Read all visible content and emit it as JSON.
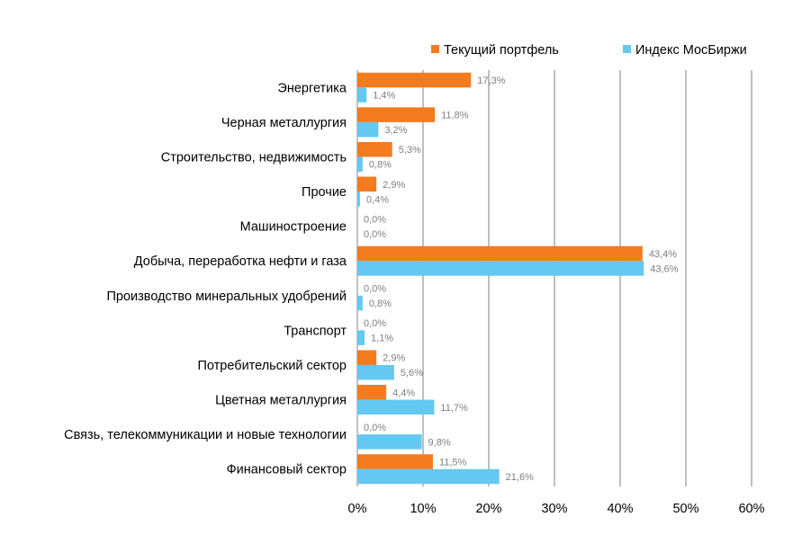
{
  "chart_data": {
    "type": "bar",
    "orientation": "horizontal",
    "title": "",
    "xlabel": "",
    "ylabel": "",
    "xlim": [
      0,
      60
    ],
    "ticks": [
      0,
      10,
      20,
      30,
      40,
      50,
      60
    ],
    "tick_labels": [
      "0%",
      "10%",
      "20%",
      "30%",
      "40%",
      "50%",
      "60%"
    ],
    "grid": true,
    "legend_position": "top-right",
    "categories": [
      "Энергетика",
      "Черная металлургия",
      "Строительство, недвижимость",
      "Прочие",
      "Машиностроение",
      "Добыча, переработка нефти и газа",
      "Производство минеральных удобрений",
      "Транспорт",
      "Потребительский сектор",
      "Цветная металлургия",
      "Связь, телекоммуникации и новые технологии",
      "Финансовый сектор"
    ],
    "series": [
      {
        "name": "Текущий портфель",
        "color": "#f47b20",
        "values": [
          17.3,
          11.8,
          5.3,
          2.9,
          0.0,
          43.4,
          0.0,
          0.0,
          2.9,
          4.4,
          0.0,
          11.5
        ],
        "labels": [
          "17,3%",
          "11,8%",
          "5,3%",
          "2,9%",
          "0,0%",
          "43,4%",
          "0,0%",
          "0,0%",
          "2,9%",
          "4,4%",
          "0,0%",
          "11,5%"
        ]
      },
      {
        "name": "Индекс МосБиржи",
        "color": "#64c8f0",
        "values": [
          1.4,
          3.2,
          0.8,
          0.4,
          0.0,
          43.6,
          0.8,
          1.1,
          5.6,
          11.7,
          9.8,
          21.6
        ],
        "labels": [
          "1,4%",
          "3,2%",
          "0,8%",
          "0,4%",
          "0,0%",
          "43,6%",
          "0,8%",
          "1,1%",
          "5,6%",
          "11,7%",
          "9,8%",
          "21,6%"
        ]
      }
    ]
  }
}
